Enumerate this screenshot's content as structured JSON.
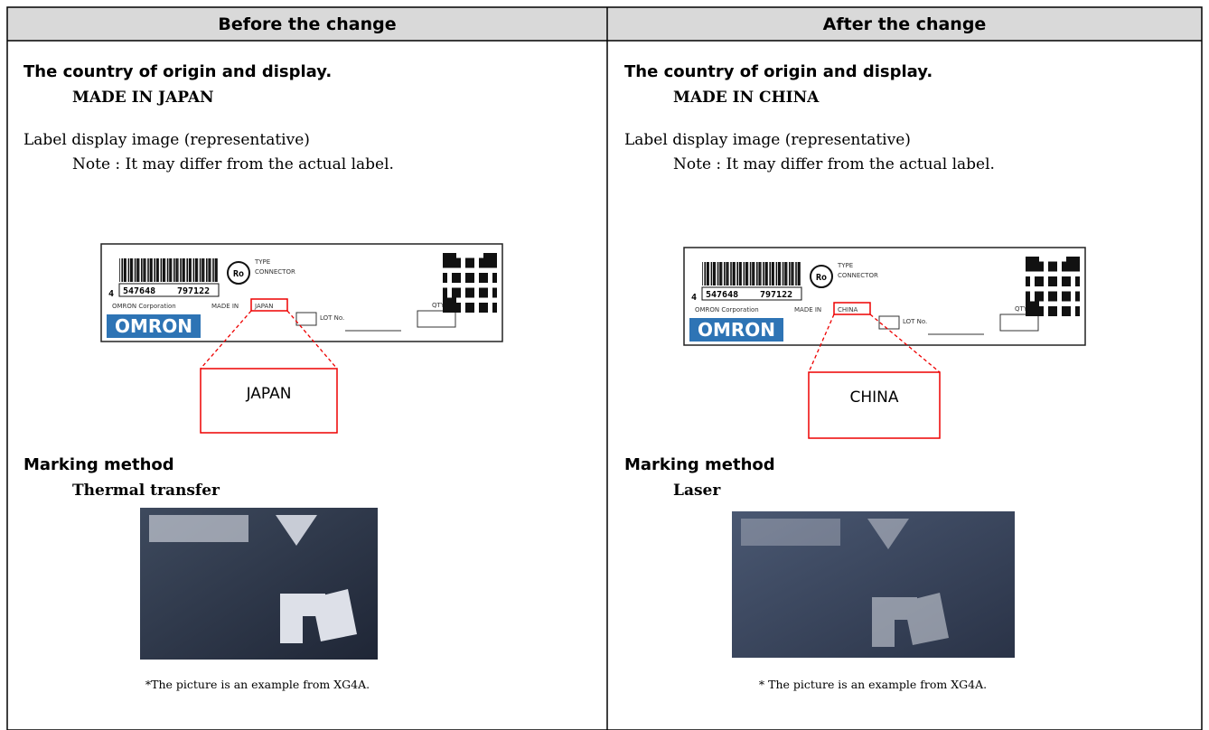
{
  "header": {
    "columns": [
      "Before the change",
      "After the change"
    ]
  },
  "columns": [
    {
      "origin_heading": "The country of origin and display.",
      "origin_value": "MADE IN JAPAN",
      "label_heading": "Label display image (representative)",
      "label_note": "Note : It may differ from the actual label.",
      "label": {
        "lead_digit": "4",
        "barcode_left": "547648",
        "barcode_right": "797122",
        "mark": "Ro",
        "type": "TYPE",
        "product": "CONNECTOR",
        "company": "OMRON Corporation",
        "made_in": "MADE IN",
        "country": "JAPAN",
        "lot": "LOT No.",
        "qty": "QTY",
        "brand": "OMRON"
      },
      "callout": "JAPAN",
      "marking_heading": "Marking method",
      "marking_value": "Thermal transfer",
      "caption": "*The picture is an example from XG4A."
    },
    {
      "origin_heading": "The country of origin and display.",
      "origin_value": "MADE IN CHINA",
      "label_heading": "Label display image (representative)",
      "label_note": "Note : It may differ from the actual label.",
      "label": {
        "lead_digit": "4",
        "barcode_left": "547648",
        "barcode_right": "797122",
        "mark": "Ro",
        "type": "TYPE",
        "product": "CONNECTOR",
        "company": "OMRON Corporation",
        "made_in": "MADE IN",
        "country": "CHINA",
        "lot": "LOT No.",
        "qty": "QTY",
        "brand": "OMRON"
      },
      "callout": "CHINA",
      "marking_heading": "Marking method",
      "marking_value": "Laser",
      "caption": "* The picture is an example from XG4A."
    }
  ]
}
